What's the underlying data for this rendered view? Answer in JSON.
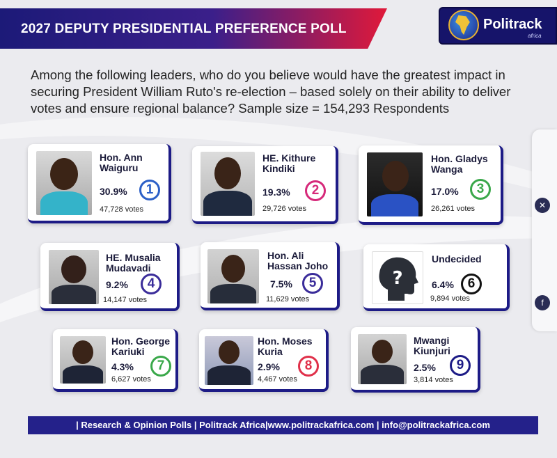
{
  "header": {
    "title": "2027 DEPUTY PRESIDENTIAL PREFERENCE POLL",
    "logo_text": "Politrack",
    "logo_sub": "africa"
  },
  "question": "Among the following leaders, who do you believe would have the greatest impact in securing President William Ruto's re-election – based solely on their ability to deliver votes and ensure regional balance? Sample size = 154,293 Respondents",
  "footer": "| Research & Opinion Polls | Politrack Africa|www.politrackafrica.com | info@politrackafrica.com",
  "colors": {
    "accent": "#1d1b86",
    "title_start": "#1c1a78",
    "title_end": "#e0193a"
  },
  "chart_data": {
    "type": "table",
    "title": "2027 DEPUTY PRESIDENTIAL PREFERENCE POLL",
    "sample_size": 154293,
    "candidates": [
      {
        "rank": "1",
        "name_line1": "Hon. Ann",
        "name_line2": "Waiguru",
        "percent": "30.9%",
        "value": 30.9,
        "votes": "47,728 votes",
        "color": "#2b5fc7"
      },
      {
        "rank": "2",
        "name_line1": "HE. Kithure",
        "name_line2": "Kindiki",
        "percent": "19.3%",
        "value": 19.3,
        "votes": "29,726 votes",
        "color": "#d6297a"
      },
      {
        "rank": "3",
        "name_line1": "Hon. Gladys",
        "name_line2": "Wanga",
        "percent": "17.0%",
        "value": 17.0,
        "votes": "26,261 votes",
        "color": "#3aa84a"
      },
      {
        "rank": "4",
        "name_line1": "HE. Musalia",
        "name_line2": "Mudavadi",
        "percent": "9.2%",
        "value": 9.2,
        "votes": "14,147 votes",
        "color": "#3a2c9a"
      },
      {
        "rank": "5",
        "name_line1": "Hon. Ali",
        "name_line2": "Hassan Joho",
        "percent": "7.5%",
        "value": 7.5,
        "votes": "11,629 votes",
        "color": "#3a2c9a"
      },
      {
        "rank": "6",
        "name_line1": "Undecided",
        "name_line2": "",
        "percent": "6.4%",
        "value": 6.4,
        "votes": "9,894 votes",
        "color": "#111111"
      },
      {
        "rank": "7",
        "name_line1": "Hon. George",
        "name_line2": "Kariuki",
        "percent": "4.3%",
        "value": 4.3,
        "votes": "6,627 votes",
        "color": "#3aa84a"
      },
      {
        "rank": "8",
        "name_line1": "Hon. Moses",
        "name_line2": "Kuria",
        "percent": "2.9%",
        "value": 2.9,
        "votes": "4,467 votes",
        "color": "#e0304a"
      },
      {
        "rank": "9",
        "name_line1": "Mwangi",
        "name_line2": "Kiunjuri",
        "percent": "2.5%",
        "value": 2.5,
        "votes": "3,814 votes",
        "color": "#1d1b86"
      }
    ]
  }
}
